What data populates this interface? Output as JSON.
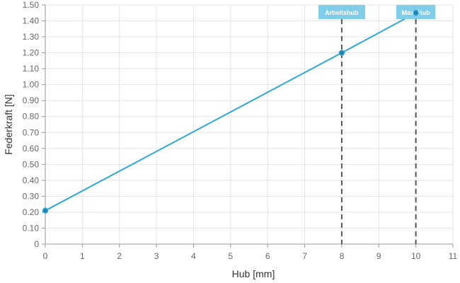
{
  "chart_data": {
    "type": "line",
    "title": "",
    "xlabel": "Hub [mm]",
    "ylabel": "Federkraft [N]",
    "xlim": [
      0,
      11
    ],
    "ylim": [
      0,
      1.5
    ],
    "x_ticks": [
      0,
      1,
      2,
      3,
      4,
      5,
      6,
      7,
      8,
      9,
      10,
      11
    ],
    "y_ticks": [
      0,
      0.1,
      0.2,
      0.3,
      0.4,
      0.5,
      0.6,
      0.7,
      0.8,
      0.9,
      1.0,
      1.1,
      1.2,
      1.3,
      1.4,
      1.5
    ],
    "y_tick_labels": [
      "0",
      "0.10",
      "0.20",
      "0.30",
      "0.40",
      "0.50",
      "0.60",
      "0.70",
      "0.80",
      "0.90",
      "1.00",
      "1.10",
      "1.20",
      "1.30",
      "1.40",
      "1.50"
    ],
    "grid": true,
    "series": [
      {
        "x": [
          0,
          8,
          10
        ],
        "y": [
          0.21,
          1.2,
          1.45
        ],
        "color": "#2ea8d8"
      }
    ],
    "markers": [
      {
        "label": "Arbeitshub",
        "x": 8
      },
      {
        "label": "Max. Hub",
        "x": 10
      }
    ],
    "colors": {
      "line": "#2ea8d8",
      "point_fill": "#2a7fa8",
      "marker_box": "#7fcde8",
      "marker_line": "#555555",
      "grid": "#e3e3e3"
    }
  }
}
